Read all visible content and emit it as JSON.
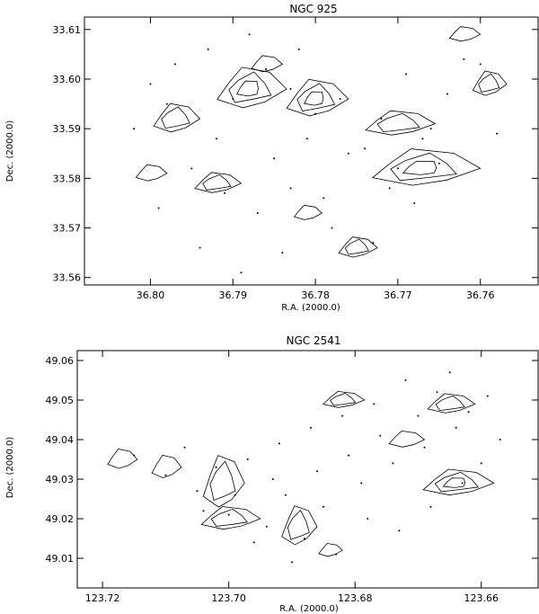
{
  "chart_data": [
    {
      "type": "scatter",
      "title": "NGC 925",
      "xlabel": "R.A. (2000.0)",
      "ylabel": "Dec. (2000.0)",
      "xlim": [
        36.808,
        36.753
      ],
      "ylim": [
        33.5585,
        33.6125
      ],
      "x_ticks": [
        36.8,
        36.79,
        36.78,
        36.77,
        36.76
      ],
      "x_tick_labels": [
        "36.80",
        "36.79",
        "36.78",
        "36.77",
        "36.76"
      ],
      "y_ticks": [
        33.56,
        33.57,
        33.58,
        33.59,
        33.6,
        33.61
      ],
      "y_tick_labels": [
        "33.56",
        "33.57",
        "33.58",
        "33.59",
        "33.60",
        "33.61"
      ],
      "grid": false,
      "series": [
        {
          "marker": "dot",
          "points": [
            [
              36.8,
              33.599
            ],
            [
              36.797,
              33.603
            ],
            [
              36.79,
              33.596
            ],
            [
              36.786,
              33.602
            ],
            [
              36.783,
              33.598
            ],
            [
              36.78,
              33.593
            ],
            [
              36.776,
              33.585
            ],
            [
              36.772,
              33.592
            ],
            [
              36.769,
              33.601
            ],
            [
              36.764,
              33.597
            ],
            [
              36.76,
              33.603
            ],
            [
              36.795,
              33.582
            ],
            [
              36.791,
              33.577
            ],
            [
              36.787,
              33.573
            ],
            [
              36.783,
              33.578
            ],
            [
              36.778,
              33.57
            ],
            [
              36.773,
              33.567
            ],
            [
              36.768,
              33.575
            ],
            [
              36.765,
              33.583
            ],
            [
              36.758,
              33.589
            ],
            [
              36.802,
              33.59
            ],
            [
              36.799,
              33.574
            ],
            [
              36.794,
              33.566
            ],
            [
              36.789,
              33.561
            ],
            [
              36.784,
              33.565
            ],
            [
              36.781,
              33.588
            ],
            [
              36.777,
              33.596
            ],
            [
              36.771,
              33.578
            ],
            [
              36.767,
              33.588
            ],
            [
              36.762,
              33.604
            ],
            [
              36.798,
              33.595
            ],
            [
              36.792,
              33.588
            ],
            [
              36.785,
              33.584
            ],
            [
              36.779,
              33.576
            ],
            [
              36.774,
              33.586
            ],
            [
              36.77,
              33.582
            ],
            [
              36.766,
              33.59
            ],
            [
              36.793,
              33.606
            ],
            [
              36.788,
              33.609
            ],
            [
              36.782,
              33.606
            ]
          ]
        },
        {
          "marker": "contour",
          "clusters": [
            {
              "center": [
                36.788,
                33.598
              ],
              "size": [
                0.0045,
                0.005
              ],
              "levels": 3
            },
            {
              "center": [
                36.78,
                33.596
              ],
              "size": [
                0.004,
                0.0045
              ],
              "levels": 3
            },
            {
              "center": [
                36.767,
                33.582
              ],
              "size": [
                0.007,
                0.0045
              ],
              "levels": 3
            },
            {
              "center": [
                36.77,
                33.591
              ],
              "size": [
                0.0045,
                0.003
              ],
              "levels": 2
            },
            {
              "center": [
                36.797,
                33.592
              ],
              "size": [
                0.003,
                0.0035
              ],
              "levels": 2
            },
            {
              "center": [
                36.792,
                33.579
              ],
              "size": [
                0.003,
                0.0025
              ],
              "levels": 2
            },
            {
              "center": [
                36.775,
                33.566
              ],
              "size": [
                0.0025,
                0.0025
              ],
              "levels": 2
            },
            {
              "center": [
                36.759,
                33.599
              ],
              "size": [
                0.0022,
                0.003
              ],
              "levels": 2
            },
            {
              "center": [
                36.786,
                33.603
              ],
              "size": [
                0.002,
                0.002
              ],
              "levels": 1
            },
            {
              "center": [
                36.8,
                33.581
              ],
              "size": [
                0.002,
                0.002
              ],
              "levels": 1
            },
            {
              "center": [
                36.781,
                33.573
              ],
              "size": [
                0.0018,
                0.0018
              ],
              "levels": 1
            },
            {
              "center": [
                36.762,
                33.609
              ],
              "size": [
                0.002,
                0.0018
              ],
              "levels": 1
            }
          ]
        }
      ]
    },
    {
      "type": "scatter",
      "title": "NGC 2541",
      "xlabel": "R.A. (2000.0)",
      "ylabel": "Dec. (2000.0)",
      "xlim": [
        123.724,
        123.651
      ],
      "ylim": [
        49.0025,
        49.0625
      ],
      "x_ticks": [
        123.72,
        123.7,
        123.68,
        123.66
      ],
      "x_tick_labels": [
        "123.72",
        "123.70",
        "123.68",
        "123.66"
      ],
      "y_ticks": [
        49.01,
        49.02,
        49.03,
        49.04,
        49.05,
        49.06
      ],
      "y_tick_labels": [
        "49.01",
        "49.02",
        "49.03",
        "49.04",
        "49.05",
        "49.06"
      ],
      "grid": false,
      "series": [
        {
          "marker": "dot",
          "points": [
            [
              123.715,
              49.036
            ],
            [
              123.71,
              49.031
            ],
            [
              123.705,
              49.027
            ],
            [
              123.7,
              49.021
            ],
            [
              123.694,
              49.018
            ],
            [
              123.688,
              49.015
            ],
            [
              123.683,
              49.011
            ],
            [
              123.678,
              49.02
            ],
            [
              123.673,
              49.017
            ],
            [
              123.668,
              49.023
            ],
            [
              123.663,
              49.029
            ],
            [
              123.66,
              49.034
            ],
            [
              123.657,
              49.04
            ],
            [
              123.662,
              49.047
            ],
            [
              123.667,
              49.052
            ],
            [
              123.672,
              49.055
            ],
            [
              123.677,
              49.049
            ],
            [
              123.682,
              49.046
            ],
            [
              123.687,
              49.043
            ],
            [
              123.692,
              49.039
            ],
            [
              123.697,
              49.035
            ],
            [
              123.702,
              49.033
            ],
            [
              123.707,
              49.038
            ],
            [
              123.691,
              49.026
            ],
            [
              123.685,
              49.023
            ],
            [
              123.679,
              49.029
            ],
            [
              123.674,
              49.034
            ],
            [
              123.669,
              49.038
            ],
            [
              123.664,
              49.043
            ],
            [
              123.659,
              49.051
            ],
            [
              123.665,
              49.057
            ],
            [
              123.67,
              49.046
            ],
            [
              123.676,
              49.041
            ],
            [
              123.681,
              49.036
            ],
            [
              123.686,
              49.032
            ],
            [
              123.693,
              49.03
            ],
            [
              123.699,
              49.026
            ],
            [
              123.704,
              49.022
            ],
            [
              123.696,
              49.014
            ],
            [
              123.69,
              49.009
            ]
          ]
        },
        {
          "marker": "contour",
          "clusters": [
            {
              "center": [
                123.664,
                49.029
              ],
              "size": [
                0.006,
                0.004
              ],
              "levels": 3
            },
            {
              "center": [
                123.701,
                49.029
              ],
              "size": [
                0.0035,
                0.008
              ],
              "levels": 2
            },
            {
              "center": [
                123.689,
                49.018
              ],
              "size": [
                0.003,
                0.006
              ],
              "levels": 2
            },
            {
              "center": [
                123.7,
                49.02
              ],
              "size": [
                0.005,
                0.0035
              ],
              "levels": 2
            },
            {
              "center": [
                123.665,
                49.049
              ],
              "size": [
                0.004,
                0.003
              ],
              "levels": 2
            },
            {
              "center": [
                123.682,
                49.05
              ],
              "size": [
                0.0035,
                0.0025
              ],
              "levels": 2
            },
            {
              "center": [
                123.717,
                49.035
              ],
              "size": [
                0.0025,
                0.003
              ],
              "levels": 1
            },
            {
              "center": [
                123.71,
                49.033
              ],
              "size": [
                0.0025,
                0.0035
              ],
              "levels": 1
            },
            {
              "center": [
                123.672,
                49.04
              ],
              "size": [
                0.003,
                0.0025
              ],
              "levels": 1
            },
            {
              "center": [
                123.684,
                49.012
              ],
              "size": [
                0.002,
                0.002
              ],
              "levels": 1
            }
          ]
        }
      ]
    }
  ]
}
